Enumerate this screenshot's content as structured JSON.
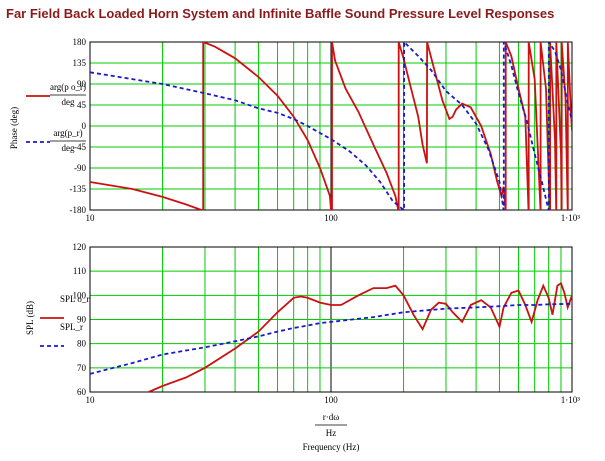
{
  "title": "Far Field Back Loaded Horn System and Infinite Baffle Sound Pressure Level Responses",
  "colors": {
    "horn": "#cc1111",
    "baffle": "#1a1acc",
    "grid": "#00cc00",
    "title": "#8b1a1a"
  },
  "chart_data": [
    {
      "type": "line",
      "xscale": "log",
      "xlim": [
        10,
        1000
      ],
      "ylim": [
        -180,
        180
      ],
      "grid": true,
      "ylabel": "Phase (deg)",
      "xlabel": "",
      "x_ticks": [
        "10",
        "100",
        "1·10³"
      ],
      "y_ticks": [
        "180",
        "135",
        "90",
        "45",
        "0",
        "-45",
        "-90",
        "-135",
        "-180"
      ],
      "legend": [
        {
          "num": "arg(p o_r)",
          "den": "deg",
          "style": "solid"
        },
        {
          "num": "arg(p_r)",
          "den": "deg",
          "style": "dashed"
        }
      ],
      "series": [
        {
          "style": "solid",
          "points": [
            [
              10,
              -120
            ],
            [
              15,
              -135
            ],
            [
              20,
              -152
            ],
            [
              25,
              -168
            ],
            [
              29,
              -180
            ],
            [
              29.5,
              180
            ],
            [
              33,
              170
            ],
            [
              40,
              145
            ],
            [
              50,
              105
            ],
            [
              60,
              65
            ],
            [
              70,
              20
            ],
            [
              80,
              -30
            ],
            [
              90,
              -90
            ],
            [
              99,
              -150
            ],
            [
              100,
              -180
            ],
            [
              101,
              180
            ],
            [
              104,
              140
            ],
            [
              115,
              80
            ],
            [
              130,
              30
            ],
            [
              150,
              -40
            ],
            [
              170,
              -100
            ],
            [
              185,
              -150
            ],
            [
              190,
              -180
            ],
            [
              191,
              180
            ],
            [
              200,
              145
            ],
            [
              215,
              80
            ],
            [
              230,
              20
            ],
            [
              240,
              -40
            ],
            [
              250,
              -80
            ],
            [
              250.5,
              180
            ],
            [
              270,
              115
            ],
            [
              290,
              55
            ],
            [
              310,
              15
            ],
            [
              320,
              20
            ],
            [
              330,
              35
            ],
            [
              350,
              48
            ],
            [
              380,
              40
            ],
            [
              420,
              0
            ],
            [
              460,
              -60
            ],
            [
              490,
              -120
            ],
            [
              510,
              -150
            ],
            [
              520,
              -130
            ],
            [
              530,
              -180
            ],
            [
              531,
              180
            ],
            [
              560,
              150
            ],
            [
              600,
              80
            ],
            [
              640,
              20
            ],
            [
              660,
              -180
            ],
            [
              661,
              180
            ],
            [
              700,
              100
            ],
            [
              720,
              -40
            ],
            [
              740,
              -180
            ],
            [
              741,
              180
            ],
            [
              780,
              80
            ],
            [
              800,
              -100
            ],
            [
              810,
              -180
            ],
            [
              811,
              180
            ],
            [
              850,
              -30
            ],
            [
              860,
              -180
            ],
            [
              861,
              180
            ],
            [
              900,
              -60
            ],
            [
              905,
              -180
            ],
            [
              906,
              180
            ],
            [
              940,
              60
            ],
            [
              960,
              -180
            ],
            [
              961,
              180
            ],
            [
              990,
              30
            ],
            [
              1000,
              -10
            ]
          ]
        },
        {
          "style": "dashed",
          "points": [
            [
              10,
              115
            ],
            [
              20,
              90
            ],
            [
              30,
              70
            ],
            [
              40,
              55
            ],
            [
              50,
              38
            ],
            [
              60,
              28
            ],
            [
              70,
              15
            ],
            [
              80,
              0
            ],
            [
              90,
              -15
            ],
            [
              100,
              -28
            ],
            [
              120,
              -55
            ],
            [
              140,
              -85
            ],
            [
              160,
              -120
            ],
            [
              180,
              -160
            ],
            [
              200,
              -180
            ],
            [
              201,
              180
            ],
            [
              230,
              150
            ],
            [
              260,
              120
            ],
            [
              300,
              75
            ],
            [
              350,
              45
            ],
            [
              400,
              5
            ],
            [
              450,
              -50
            ],
            [
              500,
              -120
            ],
            [
              520,
              -180
            ],
            [
              521,
              180
            ],
            [
              560,
              130
            ],
            [
              600,
              70
            ],
            [
              650,
              10
            ],
            [
              700,
              -60
            ],
            [
              750,
              -120
            ],
            [
              800,
              -180
            ],
            [
              801,
              180
            ],
            [
              850,
              160
            ],
            [
              900,
              120
            ],
            [
              950,
              60
            ],
            [
              1000,
              10
            ]
          ]
        }
      ]
    },
    {
      "type": "line",
      "xscale": "log",
      "xlim": [
        10,
        1000
      ],
      "ylim": [
        60,
        120
      ],
      "grid": true,
      "ylabel": "SPL (dB)",
      "xlabel": "Frequency (Hz)",
      "x_ticks": [
        "10",
        "100",
        "1·10³"
      ],
      "y_ticks": [
        "120",
        "110",
        "100",
        "90",
        "80",
        "70",
        "60"
      ],
      "x_expr": {
        "num": "r·dω",
        "den": "Hz"
      },
      "legend": [
        {
          "label": "SPL o_r",
          "style": "solid"
        },
        {
          "label": "SPL_r",
          "style": "dashed"
        }
      ],
      "series": [
        {
          "style": "solid",
          "points": [
            [
              17.5,
              60
            ],
            [
              20,
              62.5
            ],
            [
              25,
              66
            ],
            [
              30,
              70
            ],
            [
              40,
              78
            ],
            [
              50,
              85
            ],
            [
              60,
              93
            ],
            [
              70,
              99
            ],
            [
              75,
              99.5
            ],
            [
              80,
              99
            ],
            [
              90,
              97
            ],
            [
              100,
              96
            ],
            [
              110,
              96
            ],
            [
              130,
              100
            ],
            [
              150,
              103
            ],
            [
              170,
              103
            ],
            [
              185,
              104
            ],
            [
              200,
              100
            ],
            [
              220,
              92
            ],
            [
              240,
              86
            ],
            [
              260,
              94
            ],
            [
              280,
              97
            ],
            [
              300,
              96.5
            ],
            [
              320,
              93
            ],
            [
              350,
              89
            ],
            [
              380,
              96
            ],
            [
              420,
              98
            ],
            [
              460,
              95
            ],
            [
              500,
              87
            ],
            [
              520,
              95
            ],
            [
              560,
              101
            ],
            [
              600,
              102
            ],
            [
              640,
              96
            ],
            [
              680,
              89
            ],
            [
              720,
              98
            ],
            [
              760,
              104
            ],
            [
              800,
              99
            ],
            [
              830,
              92
            ],
            [
              870,
              104
            ],
            [
              900,
              105
            ],
            [
              930,
              101
            ],
            [
              960,
              95
            ],
            [
              1000,
              100
            ]
          ]
        },
        {
          "style": "dashed",
          "points": [
            [
              10,
              67.5
            ],
            [
              15,
              72
            ],
            [
              20,
              75.5
            ],
            [
              30,
              78.5
            ],
            [
              40,
              81
            ],
            [
              50,
              83
            ],
            [
              60,
              85
            ],
            [
              70,
              86.5
            ],
            [
              80,
              87.5
            ],
            [
              90,
              88.5
            ],
            [
              100,
              89
            ],
            [
              150,
              91
            ],
            [
              200,
              93
            ],
            [
              300,
              94.5
            ],
            [
              400,
              95
            ],
            [
              500,
              95.5
            ],
            [
              600,
              96
            ],
            [
              700,
              96
            ],
            [
              800,
              96.3
            ],
            [
              1000,
              96.5
            ]
          ]
        }
      ]
    }
  ]
}
